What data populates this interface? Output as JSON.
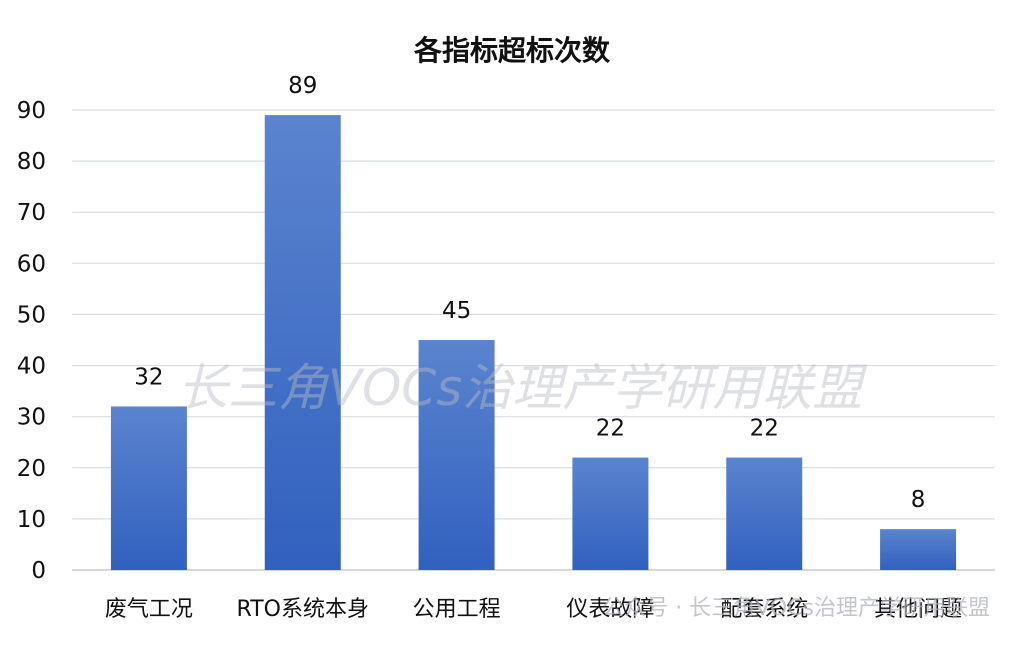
{
  "chart_data": {
    "type": "bar",
    "title": "各指标超标次数",
    "categories": [
      "废气工况",
      "RTO系统本身",
      "公用工程",
      "仪表故障",
      "配套系统",
      "其他问题"
    ],
    "values": [
      32,
      89,
      45,
      22,
      22,
      8
    ],
    "ylim": [
      0,
      90
    ],
    "yticks": [
      0,
      10,
      20,
      30,
      40,
      50,
      60,
      70,
      80,
      90
    ],
    "grid": true,
    "data_labels": true,
    "bar_color_top": "#5b84cf",
    "bar_color_bottom": "#3161bf"
  },
  "watermark": "长三角VOCs治理产学研用联盟",
  "footer_watermark": "公众号 · 长三角VOCs治理产学研用联盟"
}
